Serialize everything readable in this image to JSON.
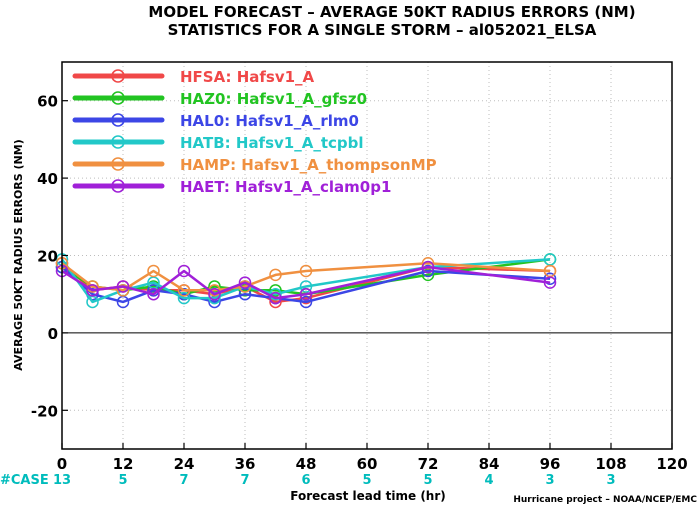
{
  "chart_data": {
    "type": "line",
    "title": "MODEL FORECAST – AVERAGE 50KT RADIUS ERRORS (NM)",
    "subtitle": "STATISTICS FOR A SINGLE STORM – al052021_ELSA",
    "xlabel": "Forecast lead time (hr)",
    "ylabel": "AVERAGE 50KT RADIUS ERRORS (NM)",
    "xlim": [
      0,
      120
    ],
    "ylim": [
      -30,
      70
    ],
    "x_ticks": [
      "0",
      "12",
      "24",
      "36",
      "48",
      "60",
      "72",
      "84",
      "96",
      "108",
      "120"
    ],
    "y_ticks": [
      "-20",
      "0",
      "20",
      "40",
      "60"
    ],
    "grid": true,
    "legend_position": "top-left",
    "case_label": "#CASE",
    "cases": [
      {
        "x": 0,
        "count": "13"
      },
      {
        "x": 12,
        "count": "5"
      },
      {
        "x": 24,
        "count": "7"
      },
      {
        "x": 36,
        "count": "7"
      },
      {
        "x": 48,
        "count": "6"
      },
      {
        "x": 60,
        "count": "5"
      },
      {
        "x": 72,
        "count": "5"
      },
      {
        "x": 84,
        "count": "4"
      },
      {
        "x": 96,
        "count": "3"
      },
      {
        "x": 108,
        "count": "3"
      }
    ],
    "case_color": "#00bcbc",
    "credit": "Hurricane project – NOAA/NCEP/EMC",
    "series": [
      {
        "name": "HFSA: Hafsv1_A",
        "color": "#f04848",
        "x": [
          0,
          6,
          12,
          18,
          24,
          30,
          36,
          42,
          48,
          72,
          96
        ],
        "y": [
          18,
          11,
          12,
          11,
          11,
          10,
          12,
          8,
          9,
          17,
          16
        ]
      },
      {
        "name": "HAZ0: Hafsv1_A_gfsz0",
        "color": "#22c422",
        "x": [
          0,
          6,
          12,
          18,
          24,
          30,
          36,
          42,
          48,
          72,
          96
        ],
        "y": [
          17,
          12,
          11,
          12,
          10,
          12,
          11,
          11,
          10,
          15,
          19
        ]
      },
      {
        "name": "HAL0: Hafsv1_A_rlm0",
        "color": "#3c46e6",
        "x": [
          0,
          6,
          12,
          18,
          24,
          30,
          36,
          42,
          48,
          72,
          96
        ],
        "y": [
          17,
          10,
          8,
          11,
          10,
          8,
          10,
          9,
          8,
          16,
          14
        ]
      },
      {
        "name": "HATB: Hafsv1_A_tcpbl",
        "color": "#22c8c8",
        "x": [
          0,
          6,
          12,
          18,
          24,
          30,
          36,
          42,
          48,
          72,
          96
        ],
        "y": [
          19,
          8,
          11,
          13,
          9,
          9,
          12,
          10,
          12,
          17,
          19
        ]
      },
      {
        "name": "HAMP: Hafsv1_A_thompsonMP",
        "color": "#f09040",
        "x": [
          0,
          6,
          12,
          18,
          24,
          30,
          36,
          42,
          48,
          72,
          96
        ],
        "y": [
          18,
          12,
          11,
          16,
          11,
          11,
          12,
          15,
          16,
          18,
          16
        ]
      },
      {
        "name": "HAET: Hafsv1_A_clam0p1",
        "color": "#a020d8",
        "x": [
          0,
          6,
          12,
          18,
          24,
          30,
          36,
          42,
          48,
          72,
          96
        ],
        "y": [
          16,
          11,
          12,
          10,
          16,
          10,
          13,
          9,
          10,
          17,
          13
        ]
      }
    ]
  }
}
